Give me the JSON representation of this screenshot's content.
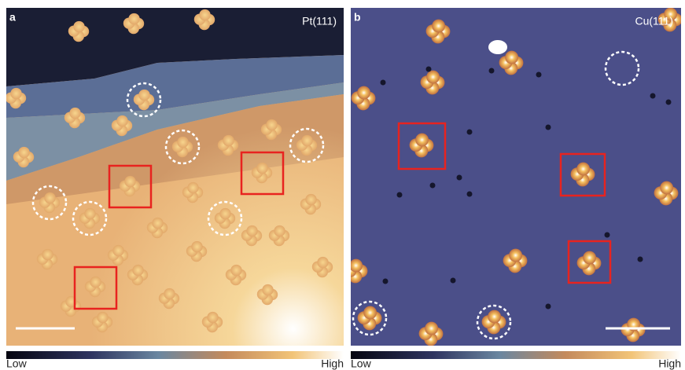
{
  "panels": [
    {
      "label": "a",
      "title": "Pt(111)",
      "colorbar": {
        "low": "Low",
        "high": "High"
      }
    },
    {
      "label": "b",
      "title": "Cu(111)",
      "colorbar": {
        "low": "Low",
        "high": "High"
      }
    }
  ]
}
